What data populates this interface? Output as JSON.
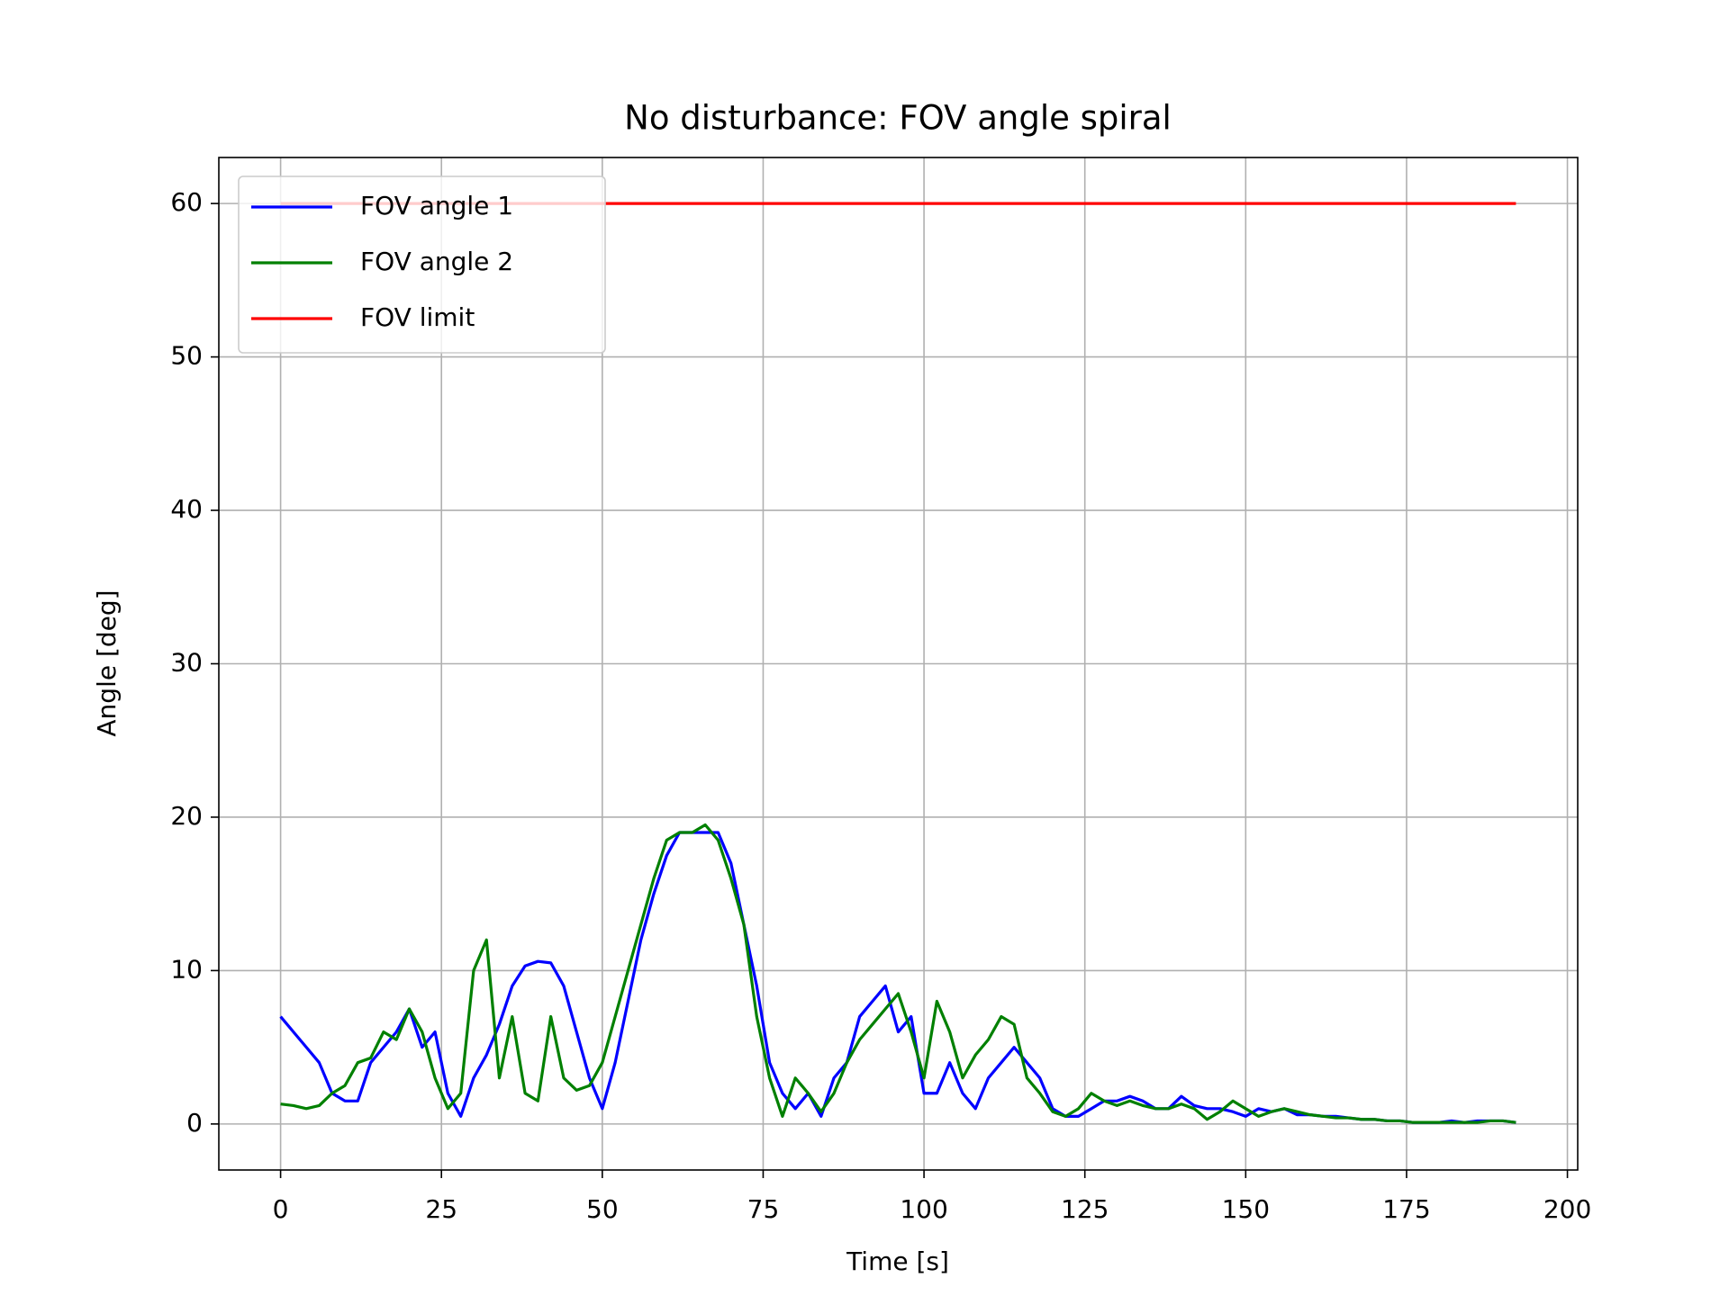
{
  "chart_data": {
    "type": "line",
    "title": "No disturbance: FOV angle spiral",
    "xlabel": "Time [s]",
    "ylabel": "Angle [deg]",
    "x": [
      0,
      2,
      4,
      6,
      8,
      10,
      12,
      14,
      16,
      18,
      20,
      22,
      24,
      26,
      28,
      30,
      32,
      34,
      36,
      38,
      40,
      42,
      44,
      46,
      48,
      50,
      52,
      54,
      56,
      58,
      60,
      62,
      64,
      66,
      68,
      70,
      72,
      74,
      76,
      78,
      80,
      82,
      84,
      86,
      88,
      90,
      92,
      94,
      96,
      98,
      100,
      102,
      104,
      106,
      108,
      110,
      112,
      114,
      116,
      118,
      120,
      122,
      124,
      126,
      128,
      130,
      132,
      134,
      136,
      138,
      140,
      142,
      144,
      146,
      148,
      150,
      152,
      154,
      156,
      158,
      160,
      162,
      164,
      166,
      168,
      170,
      172,
      174,
      176,
      178,
      180,
      182,
      184,
      186,
      188,
      190,
      192
    ],
    "series": [
      {
        "name": "FOV angle 1",
        "color": "#0000ff",
        "values": [
          7,
          6,
          5,
          4,
          2,
          1.5,
          1.5,
          4,
          5,
          6,
          7.5,
          5,
          6,
          2,
          0.5,
          3,
          4.5,
          6.5,
          9,
          10.3,
          10.6,
          10.5,
          9,
          6,
          3,
          1,
          4,
          8,
          12,
          15,
          17.5,
          19,
          19,
          19,
          19,
          17,
          13,
          9,
          4,
          2,
          1,
          2,
          0.5,
          3,
          4,
          7,
          8,
          9,
          6,
          7,
          2,
          2,
          4,
          2,
          1,
          3,
          4,
          5,
          4,
          3,
          1,
          0.5,
          0.5,
          1,
          1.5,
          1.5,
          1.8,
          1.5,
          1,
          1,
          1.8,
          1.2,
          1,
          1,
          0.8,
          0.5,
          1,
          0.8,
          1,
          0.6,
          0.6,
          0.5,
          0.5,
          0.4,
          0.3,
          0.3,
          0.2,
          0.2,
          0.1,
          0.1,
          0.1,
          0.2,
          0.1,
          0.2,
          0.2,
          0.2,
          0.1
        ]
      },
      {
        "name": "FOV angle 2",
        "color": "#008000",
        "values": [
          1.3,
          1.2,
          1,
          1.2,
          2,
          2.5,
          4,
          4.3,
          6,
          5.5,
          7.5,
          6,
          3,
          1,
          2,
          10,
          12,
          3,
          7,
          2,
          1.5,
          7,
          3,
          2.2,
          2.5,
          4,
          7,
          10,
          13,
          16,
          18.5,
          19,
          19,
          19.5,
          18.5,
          16,
          13,
          7,
          3,
          0.5,
          3,
          2,
          0.8,
          2,
          4,
          5.5,
          6.5,
          7.5,
          8.5,
          6,
          3,
          8,
          6,
          3,
          4.5,
          5.5,
          7,
          6.5,
          3,
          2,
          0.8,
          0.5,
          1,
          2,
          1.5,
          1.2,
          1.5,
          1.2,
          1,
          1,
          1.3,
          1,
          0.3,
          0.8,
          1.5,
          1,
          0.5,
          0.8,
          1,
          0.8,
          0.6,
          0.5,
          0.4,
          0.4,
          0.3,
          0.3,
          0.2,
          0.2,
          0.1,
          0.1,
          0.1,
          0.1,
          0.1,
          0.1,
          0.2,
          0.2,
          0.1
        ]
      },
      {
        "name": "FOV limit",
        "color": "#ff0000",
        "x": [
          0,
          192
        ],
        "values": [
          60,
          60
        ]
      }
    ],
    "xlim": [
      -9.6,
      201.6
    ],
    "xticks": [
      0,
      25,
      50,
      75,
      100,
      125,
      150,
      175,
      200
    ],
    "ylim": [
      -3,
      63
    ],
    "yticks": [
      0,
      10,
      20,
      30,
      40,
      50,
      60
    ],
    "grid": true,
    "legend": "upper left"
  }
}
